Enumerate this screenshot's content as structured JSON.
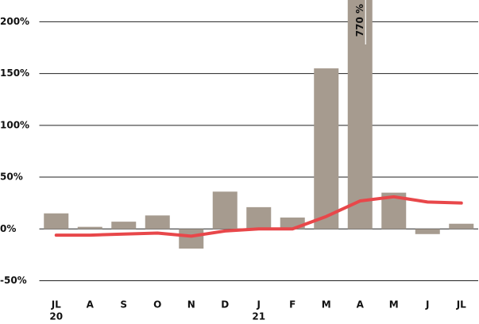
{
  "chart_data": {
    "type": "bar",
    "categories": [
      "JL",
      "A",
      "S",
      "O",
      "N",
      "D",
      "J",
      "F",
      "M",
      "A",
      "M",
      "J",
      "JL"
    ],
    "category_sublabels": [
      "20",
      null,
      null,
      null,
      null,
      null,
      "21",
      null,
      null,
      null,
      null,
      null,
      null
    ],
    "series": [
      {
        "type": "bar",
        "color": "#a69b8f",
        "values": [
          15,
          2,
          7,
          13,
          -19,
          36,
          21,
          11,
          155,
          770,
          35,
          -5,
          5
        ],
        "value_labels": [
          null,
          null,
          null,
          null,
          null,
          null,
          null,
          null,
          null,
          "770 %",
          null,
          null,
          null
        ]
      },
      {
        "type": "line",
        "color": "#e8474a",
        "values": [
          -6,
          -6,
          -5,
          -4,
          -7,
          -2,
          0,
          0,
          12,
          27,
          31,
          26,
          25
        ]
      }
    ],
    "ylim": [
      -55,
      221
    ],
    "yticks": [
      {
        "value": -50,
        "label": "-50%"
      },
      {
        "value": 0,
        "label": "0%"
      },
      {
        "value": 50,
        "label": "50%"
      },
      {
        "value": 100,
        "label": "100%"
      },
      {
        "value": 150,
        "label": "150%"
      },
      {
        "value": 200,
        "label": "200%"
      }
    ],
    "grid": true
  }
}
